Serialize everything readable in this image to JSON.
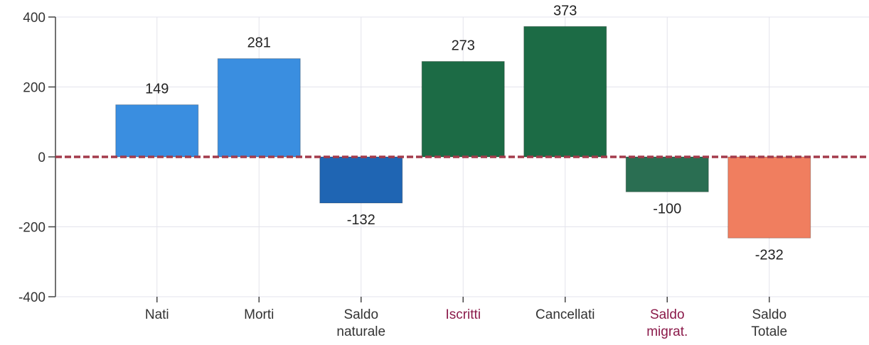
{
  "chart_data": {
    "type": "bar",
    "title": "",
    "xlabel": "",
    "ylabel": "",
    "ylim": [
      -400,
      400
    ],
    "yticks": [
      -400,
      -200,
      0,
      200,
      400
    ],
    "grid": true,
    "legend": "none",
    "categories": [
      [
        "Nati"
      ],
      [
        "Morti"
      ],
      [
        "Saldo",
        "naturale"
      ],
      [
        "Iscritti"
      ],
      [
        "Cancellati"
      ],
      [
        "Saldo",
        "migrat."
      ],
      [
        "Saldo",
        "Totale"
      ]
    ],
    "values": [
      149,
      281,
      -132,
      273,
      373,
      -100,
      -232
    ],
    "data_labels": [
      "149",
      "281",
      "-132",
      "273",
      "373",
      "-100",
      "-232"
    ],
    "bar_colors": [
      "#3a8ee0",
      "#3a8ee0",
      "#1f65b3",
      "#1c6b45",
      "#1c6b45",
      "#2a6e52",
      "#f07e5f"
    ],
    "category_label_colors": [
      "#333333",
      "#333333",
      "#333333",
      "#8b1a4a",
      "#333333",
      "#8b1a4a",
      "#333333"
    ],
    "zero_line_color": "#a33b4b"
  }
}
